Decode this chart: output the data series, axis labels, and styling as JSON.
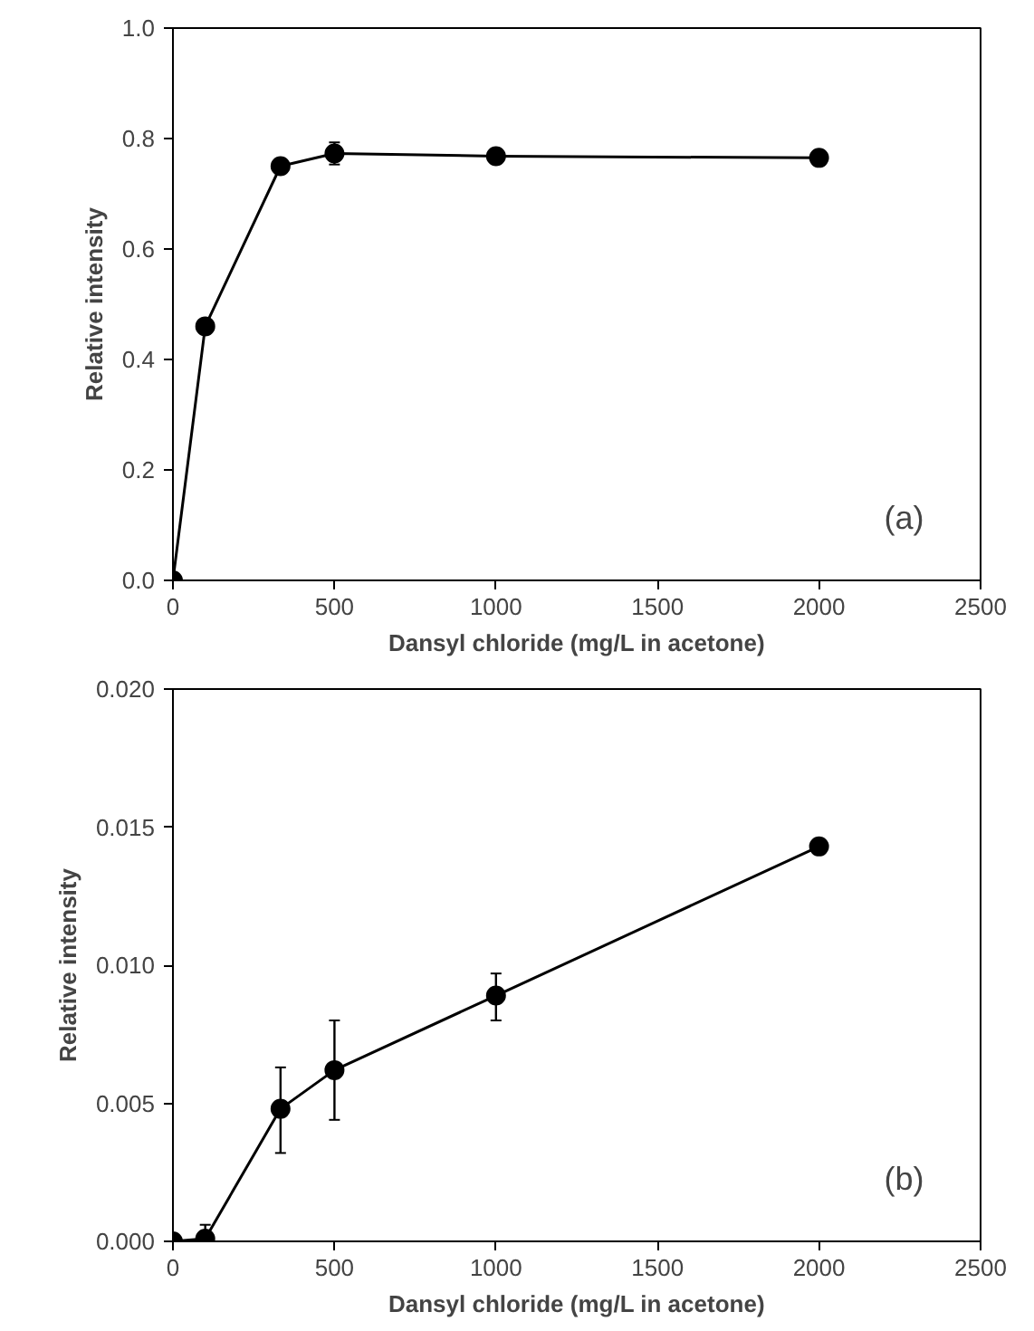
{
  "chart_data": [
    {
      "type": "line",
      "xlabel": "Dansyl chloride (mg/L in acetone)",
      "ylabel": "Relative intensity",
      "annotations": [
        "(a)"
      ],
      "x": [
        0,
        100,
        333,
        500,
        1000,
        2000
      ],
      "series": [
        {
          "color": "#000000",
          "values": [
            0,
            0.46,
            0.75,
            0.773,
            0.768,
            0.765
          ],
          "errors": [
            null,
            null,
            null,
            0.02,
            null,
            null
          ]
        }
      ],
      "xlim": [
        0,
        2500
      ],
      "xticks": [
        0,
        500,
        1000,
        1500,
        2000,
        2500
      ],
      "ylim": [
        0,
        1
      ],
      "yticks": [
        {
          "value": 0,
          "label": "0.0"
        },
        0.2,
        0.4,
        0.6,
        0.8,
        {
          "value": 1,
          "label": "1.0"
        }
      ],
      "grid": false,
      "marker": "circle",
      "line_style": "solid"
    },
    {
      "type": "line",
      "xlabel": "Dansyl chloride (mg/L in acetone)",
      "ylabel": "Relative intensity",
      "annotations": [
        "(b)"
      ],
      "x": [
        0,
        100,
        333,
        500,
        1000,
        2000
      ],
      "series": [
        {
          "color": "#000000",
          "values": [
            0,
            0.0001,
            0.0048,
            0.0062,
            0.0089,
            0.0143
          ],
          "errors": [
            null,
            [
              0,
              0.0006
            ],
            [
              0.0032,
              0.0063
            ],
            [
              0.0044,
              0.008
            ],
            [
              0.008,
              0.0097
            ],
            null
          ]
        }
      ],
      "xlim": [
        0,
        2500
      ],
      "xticks": [
        0,
        500,
        1000,
        1500,
        2000,
        2500
      ],
      "ylim": [
        0,
        0.02
      ],
      "yticks": [
        {
          "value": 0,
          "label": "0.000"
        },
        {
          "value": 0.005,
          "label": "0.005"
        },
        {
          "value": 0.01,
          "label": "0.010"
        },
        {
          "value": 0.015,
          "label": "0.015"
        },
        {
          "value": 0.02,
          "label": "0.020"
        }
      ],
      "grid": false,
      "marker": "circle",
      "line_style": "solid"
    }
  ]
}
